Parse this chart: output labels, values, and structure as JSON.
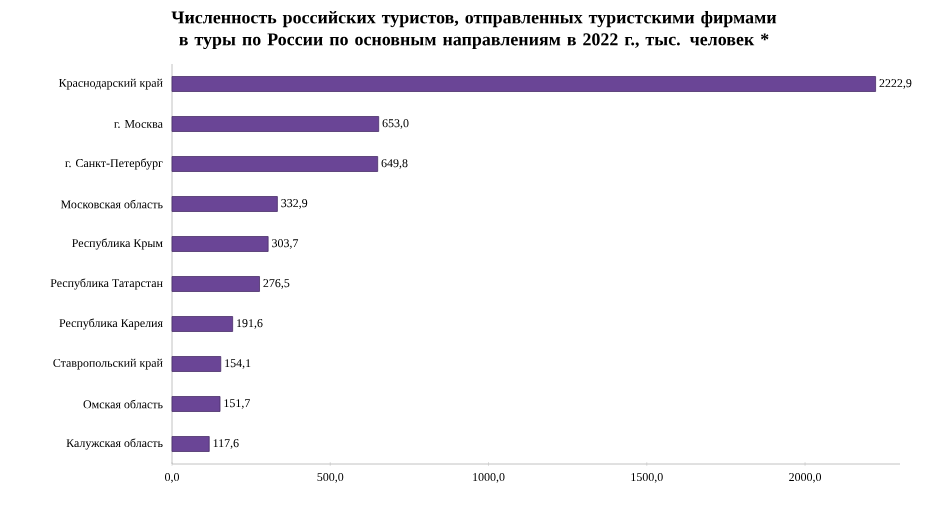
{
  "chart_data": {
    "type": "bar",
    "orientation": "horizontal",
    "title": "Численность российских туристов, отправленных туристскими фирмами в туры по России по основным направлениям в 2022 г., тыс. человек *",
    "categories": [
      "Краснодарский край",
      "г. Москва",
      "г. Санкт-Петербург",
      "Московская область",
      "Республика Крым",
      "Республика Татарстан",
      "Республика Карелия",
      "Ставропольский край",
      "Омская область",
      "Калужская область"
    ],
    "values": [
      2222.9,
      653.0,
      649.8,
      332.9,
      303.7,
      276.5,
      191.6,
      154.1,
      151.7,
      117.6
    ],
    "value_labels": [
      "2222,9",
      "653,0",
      "649,8",
      "332,9",
      "303,7",
      "276,5",
      "191,6",
      "154,1",
      "151,7",
      "117,6"
    ],
    "color": "#6a4596",
    "xlim": [
      0,
      2300
    ],
    "xticks": [
      {
        "value": 0,
        "label": "0,0"
      },
      {
        "value": 500,
        "label": "500,0"
      },
      {
        "value": 1000,
        "label": "1000,0"
      },
      {
        "value": 1500,
        "label": "1500,0"
      },
      {
        "value": 2000,
        "label": "2000,0"
      }
    ],
    "grid": false
  }
}
